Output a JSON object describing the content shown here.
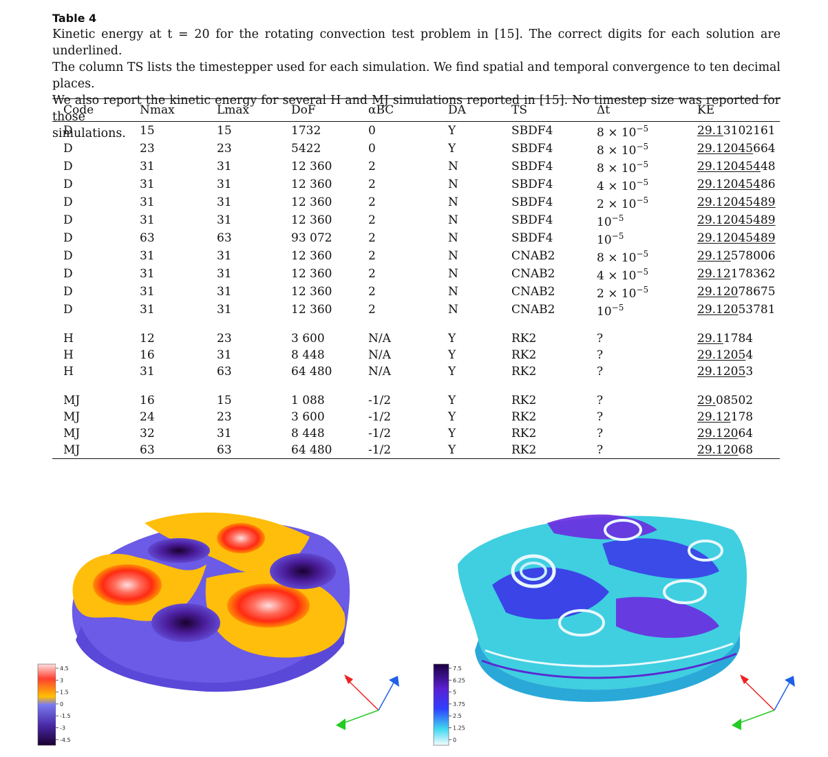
{
  "caption": {
    "title": "Table 4",
    "lines": [
      "Kinetic energy at t = 20 for the rotating convection test problem in [15]. The correct digits for each solution are underlined.",
      "The column TS lists the timestepper used for each simulation. We find spatial and temporal convergence to ten decimal places.",
      "We also report the kinetic energy for several H and MJ simulations reported in [15]. No timestep size was reported for those",
      "simulations."
    ]
  },
  "table": {
    "headers": [
      "Code",
      "Nmax",
      "Lmax",
      "DoF",
      "αBC",
      "DA",
      "TS",
      "Δt",
      "KE"
    ],
    "groups": [
      [
        [
          "D",
          "15",
          "15",
          "1732",
          "0",
          "Y",
          "SBDF4",
          "8 × 10^-5",
          "29.1",
          "3102161"
        ],
        [
          "D",
          "23",
          "23",
          "5422",
          "0",
          "Y",
          "SBDF4",
          "8 × 10^-5",
          "29.12045",
          "664"
        ],
        [
          "D",
          "31",
          "31",
          "12 360",
          "2",
          "N",
          "SBDF4",
          "8 × 10^-5",
          "29.120454",
          "48"
        ],
        [
          "D",
          "31",
          "31",
          "12 360",
          "2",
          "N",
          "SBDF4",
          "4 × 10^-5",
          "29.120454",
          "86"
        ],
        [
          "D",
          "31",
          "31",
          "12 360",
          "2",
          "N",
          "SBDF4",
          "2 × 10^-5",
          "29.12045489",
          ""
        ],
        [
          "D",
          "31",
          "31",
          "12 360",
          "2",
          "N",
          "SBDF4",
          "10^-5",
          "29.12045489",
          ""
        ],
        [
          "D",
          "63",
          "63",
          "93 072",
          "2",
          "N",
          "SBDF4",
          "10^-5",
          "29.12045489",
          ""
        ],
        [
          "D",
          "31",
          "31",
          "12 360",
          "2",
          "N",
          "CNAB2",
          "8 × 10^-5",
          "29.12",
          "578006"
        ],
        [
          "D",
          "31",
          "31",
          "12 360",
          "2",
          "N",
          "CNAB2",
          "4 × 10^-5",
          "29.12",
          "178362"
        ],
        [
          "D",
          "31",
          "31",
          "12 360",
          "2",
          "N",
          "CNAB2",
          "2 × 10^-5",
          "29.120",
          "78675"
        ],
        [
          "D",
          "31",
          "31",
          "12 360",
          "2",
          "N",
          "CNAB2",
          "10^-5",
          "29.120",
          "53781"
        ]
      ],
      [
        [
          "H",
          "12",
          "23",
          "3 600",
          "N/A",
          "Y",
          "RK2",
          "?",
          "29.1",
          "1784"
        ],
        [
          "H",
          "16",
          "31",
          "8 448",
          "N/A",
          "Y",
          "RK2",
          "?",
          "29.1205",
          "4"
        ],
        [
          "H",
          "31",
          "63",
          "64 480",
          "N/A",
          "Y",
          "RK2",
          "?",
          "29.1205",
          "3"
        ]
      ],
      [
        [
          "MJ",
          "16",
          "15",
          "1 088",
          "-1/2",
          "Y",
          "RK2",
          "?",
          "29.",
          "08502"
        ],
        [
          "MJ",
          "24",
          "23",
          "3 600",
          "-1/2",
          "Y",
          "RK2",
          "?",
          "29.12",
          "178"
        ],
        [
          "MJ",
          "32",
          "31",
          "8 448",
          "-1/2",
          "Y",
          "RK2",
          "?",
          "29.120",
          "64"
        ],
        [
          "MJ",
          "63",
          "63",
          "64 480",
          "-1/2",
          "Y",
          "RK2",
          "?",
          "29.120",
          "68"
        ]
      ]
    ]
  },
  "left_figure": {
    "colorbar_ticks": [
      "4.5",
      "3",
      "1.5",
      "0",
      "-1.5",
      "-3",
      "-4.5"
    ],
    "colors": {
      "positive_high": "#ffd9d9",
      "positive_mid": "#ff2a1a",
      "warm": "#ffc20a",
      "negative_low": "#6a5ae0",
      "negative_high": "#1a0030"
    }
  },
  "right_figure": {
    "colorbar_ticks": [
      "7.5",
      "6.25",
      "5",
      "3.75",
      "2.5",
      "1.25",
      "0"
    ],
    "colors": {
      "high": "#1a0040",
      "mid": "#3326ff",
      "low": "#2fd0e8",
      "zero": "#f4fbff"
    }
  },
  "axes_triad": {
    "x_color": "#ee2222",
    "y_color": "#22cc22",
    "z_color": "#1f5fe8"
  }
}
